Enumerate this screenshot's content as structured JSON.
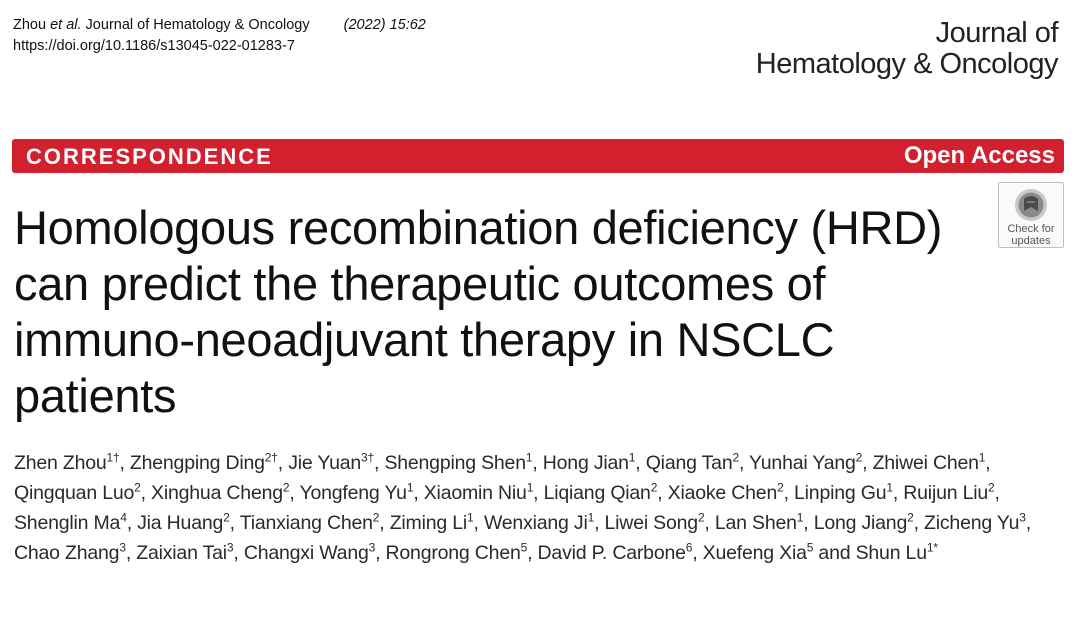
{
  "citation": {
    "authors_short": "Zhou ",
    "et_al": "et al.",
    "journal_name": " Journal of Hematology & Oncology",
    "year_volume": "(2022) 15:62",
    "doi": "https://doi.org/10.1186/s13045-022-01283-7"
  },
  "journal_logo": {
    "line1": "Journal of",
    "line2": "Hematology & Oncology"
  },
  "banner": {
    "article_type": "CORRESPONDENCE",
    "access": "Open Access",
    "color": "#d2202f"
  },
  "check_for_updates": {
    "line1": "Check for",
    "line2": "updates",
    "icon": "check-for-updates-icon"
  },
  "title": "Homologous recombination deficiency (HRD) can predict the therapeutic outcomes of immuno-neoadjuvant therapy in NSCLC patients",
  "authors": [
    {
      "name": "Zhen Zhou",
      "aff": "1†"
    },
    {
      "name": "Zhengping Ding",
      "aff": "2†"
    },
    {
      "name": "Jie Yuan",
      "aff": "3†"
    },
    {
      "name": "Shengping Shen",
      "aff": "1"
    },
    {
      "name": "Hong Jian",
      "aff": "1"
    },
    {
      "name": "Qiang Tan",
      "aff": "2"
    },
    {
      "name": "Yunhai Yang",
      "aff": "2"
    },
    {
      "name": "Zhiwei Chen",
      "aff": "1"
    },
    {
      "name": "Qingquan Luo",
      "aff": "2"
    },
    {
      "name": "Xinghua Cheng",
      "aff": "2"
    },
    {
      "name": "Yongfeng Yu",
      "aff": "1"
    },
    {
      "name": "Xiaomin Niu",
      "aff": "1"
    },
    {
      "name": "Liqiang Qian",
      "aff": "2"
    },
    {
      "name": "Xiaoke Chen",
      "aff": "2"
    },
    {
      "name": "Linping Gu",
      "aff": "1"
    },
    {
      "name": "Ruijun Liu",
      "aff": "2"
    },
    {
      "name": "Shenglin Ma",
      "aff": "4"
    },
    {
      "name": "Jia Huang",
      "aff": "2"
    },
    {
      "name": "Tianxiang Chen",
      "aff": "2"
    },
    {
      "name": "Ziming Li",
      "aff": "1"
    },
    {
      "name": "Wenxiang Ji",
      "aff": "1"
    },
    {
      "name": "Liwei Song",
      "aff": "2"
    },
    {
      "name": "Lan Shen",
      "aff": "1"
    },
    {
      "name": "Long Jiang",
      "aff": "2"
    },
    {
      "name": "Zicheng Yu",
      "aff": "3"
    },
    {
      "name": "Chao Zhang",
      "aff": "3"
    },
    {
      "name": "Zaixian Tai",
      "aff": "3"
    },
    {
      "name": "Changxi Wang",
      "aff": "3"
    },
    {
      "name": "Rongrong Chen",
      "aff": "5"
    },
    {
      "name": "David P. Carbone",
      "aff": "6"
    },
    {
      "name": "Xuefeng Xia",
      "aff": "5"
    },
    {
      "name": "Shun Lu",
      "aff": "1*"
    }
  ],
  "author_separator": ", ",
  "author_last_separator": " and "
}
